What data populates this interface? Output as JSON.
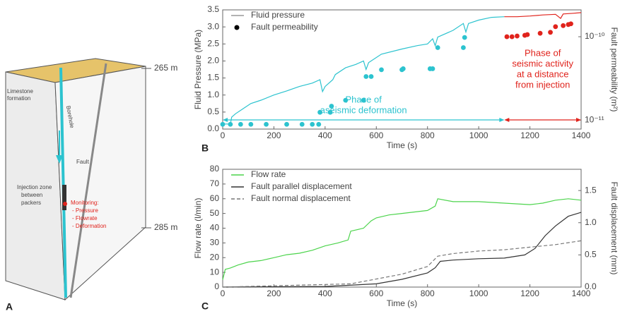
{
  "diagram": {
    "panel_label": "A",
    "limestone": [
      "Limestone",
      "formation"
    ],
    "borehole": "Borehole",
    "fault": "Fault",
    "injection": [
      "Injection zone",
      "between",
      "packers"
    ],
    "monitoring": [
      "Monitoring:",
      "- Pressure",
      "- Flowrate",
      "- Deformation"
    ],
    "depth_top": "265 m",
    "depth_bottom": "285 m"
  },
  "chart_data": [
    {
      "type": "line",
      "panel_label": "B",
      "xlabel": "Time (s)",
      "ylabel": "Fluid Pressure (MPa)",
      "y2label": "Fault permeability (m²)",
      "xlim": [
        0,
        1400
      ],
      "xticks": [
        0,
        200,
        400,
        600,
        800,
        1000,
        1200,
        1400
      ],
      "ylim": [
        0,
        3.5
      ],
      "yticks": [
        {
          "value": 0,
          "label": "0.0"
        },
        0.5,
        {
          "value": 1,
          "label": "1.0"
        },
        1.5,
        {
          "value": 2,
          "label": "2.0"
        },
        2.5,
        {
          "value": 3,
          "label": "3.0"
        },
        3.5
      ],
      "y2lim": [
        7.8e-12,
        2.1e-10
      ],
      "y2log": true,
      "y2ticks": [
        {
          "value": 1e-11,
          "label": "10⁻¹¹"
        },
        {
          "value": 1e-10,
          "label": "10⁻¹⁰"
        }
      ],
      "legend": "upper left",
      "phases": [
        {
          "range": [
            0,
            1100
          ],
          "color": "#2cc3cf",
          "text": [
            "Phase of",
            "aseismic deformation"
          ]
        },
        {
          "range": [
            1100,
            1400
          ],
          "color": "#e0231c",
          "text": [
            "Phase of",
            "seismic activity",
            "at a distance",
            "from injection"
          ]
        }
      ],
      "series": [
        {
          "name": "Fluid pressure",
          "type": "line",
          "color": "#999999",
          "x": [
            0,
            30,
            35,
            50,
            80,
            110,
            150,
            200,
            250,
            300,
            350,
            380,
            390,
            400,
            430,
            440,
            480,
            520,
            550,
            560,
            570,
            620,
            700,
            760,
            800,
            820,
            830,
            840,
            900,
            940,
            950,
            960,
            1000,
            1050,
            1100,
            1150,
            1200,
            1250,
            1300,
            1320,
            1330,
            1370,
            1400
          ],
          "values": [
            0.15,
            0.15,
            0.35,
            0.45,
            0.6,
            0.75,
            0.85,
            1.0,
            1.12,
            1.25,
            1.35,
            1.45,
            1.1,
            1.25,
            1.45,
            1.6,
            1.8,
            1.9,
            2.0,
            1.75,
            1.95,
            2.2,
            2.35,
            2.45,
            2.5,
            2.65,
            2.45,
            2.7,
            2.9,
            3.1,
            2.85,
            3.1,
            3.2,
            3.28,
            3.3,
            3.3,
            3.32,
            3.35,
            3.37,
            3.25,
            3.38,
            3.4,
            3.42
          ]
        },
        {
          "name": "Fault permeability",
          "type": "scatter",
          "axis": "y2",
          "color": "#000000",
          "x": [
            0,
            30,
            70,
            110,
            170,
            250,
            310,
            350,
            375,
            380,
            420,
            425,
            480,
            550,
            560,
            580,
            620,
            700,
            705,
            810,
            820,
            840,
            940,
            945,
            1110,
            1130,
            1150,
            1180,
            1190,
            1240,
            1280,
            1300,
            1330,
            1350,
            1360
          ],
          "values": [
            8.9e-12,
            8.9e-12,
            8.9e-12,
            8.9e-12,
            8.9e-12,
            8.9e-12,
            8.9e-12,
            8.9e-12,
            8.9e-12,
            1.24e-11,
            1.24e-11,
            1.47e-11,
            1.73e-11,
            1.73e-11,
            3.33e-11,
            3.33e-11,
            4.02e-11,
            4.02e-11,
            4.13e-11,
            4.13e-11,
            4.13e-11,
            7.4e-11,
            7.4e-11,
            9.8e-11,
            1e-10,
            1e-10,
            1.02e-10,
            1.04e-10,
            1.06e-10,
            1.1e-10,
            1.13e-10,
            1.32e-10,
            1.36e-10,
            1.4e-10,
            1.43e-10
          ]
        }
      ]
    },
    {
      "type": "line",
      "panel_label": "C",
      "xlabel": "Time (s)",
      "ylabel": "Flow rate (l/min)",
      "y2label": "Fault displacement (mm)",
      "xlim": [
        0,
        1400
      ],
      "xticks": [
        0,
        200,
        400,
        600,
        800,
        1000,
        1200,
        1400
      ],
      "ylim": [
        0,
        80
      ],
      "yticks": [
        0,
        10,
        20,
        30,
        40,
        50,
        60,
        70,
        80
      ],
      "y2lim": [
        0,
        1.83
      ],
      "y2ticks": [
        {
          "value": 0,
          "label": "0.0"
        },
        0.5,
        {
          "value": 1,
          "label": "1.0"
        },
        1.5
      ],
      "legend": "upper left",
      "series": [
        {
          "name": "Flow rate",
          "type": "line",
          "color": "#4cd44c",
          "x": [
            0,
            10,
            30,
            60,
            100,
            150,
            200,
            250,
            300,
            350,
            400,
            450,
            490,
            500,
            550,
            580,
            600,
            650,
            700,
            750,
            800,
            830,
            840,
            900,
            1000,
            1100,
            1200,
            1250,
            1300,
            1350,
            1400
          ],
          "values": [
            5,
            12,
            13,
            15,
            17,
            18,
            20,
            22,
            23,
            25,
            28,
            30,
            32,
            38,
            40,
            45,
            47,
            49,
            50,
            51,
            52,
            55,
            60,
            58,
            58,
            57,
            56,
            57,
            59,
            60,
            59
          ]
        },
        {
          "name": "Fault parallel displacement",
          "type": "line",
          "axis": "y2",
          "color": "#333333",
          "x": [
            0,
            400,
            600,
            700,
            800,
            830,
            850,
            900,
            1000,
            1100,
            1180,
            1220,
            1260,
            1300,
            1350,
            1400
          ],
          "values": [
            0,
            0.01,
            0.05,
            0.12,
            0.22,
            0.3,
            0.4,
            0.42,
            0.44,
            0.45,
            0.5,
            0.6,
            0.8,
            0.95,
            1.1,
            1.16
          ]
        },
        {
          "name": "Fault normal displacement",
          "type": "line",
          "axis": "y2",
          "color": "#777777",
          "dash": true,
          "x": [
            0,
            500,
            700,
            800,
            840,
            900,
            1000,
            1100,
            1200,
            1300,
            1400
          ],
          "values": [
            0,
            0.05,
            0.2,
            0.32,
            0.48,
            0.52,
            0.56,
            0.58,
            0.62,
            0.66,
            0.72
          ]
        }
      ]
    }
  ]
}
